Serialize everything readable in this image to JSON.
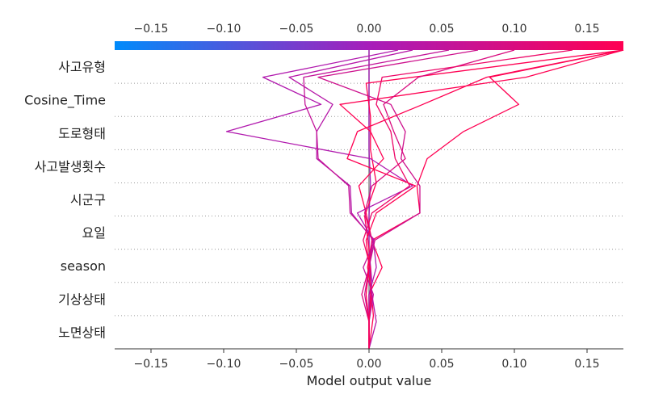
{
  "chart_data": {
    "type": "line",
    "subtype": "decision-plot",
    "xlabel": "Model output value",
    "ylabel": "",
    "xlim": [
      -0.175,
      0.175
    ],
    "base_value": 0.0,
    "x_ticks": [
      -0.15,
      -0.1,
      -0.05,
      0.0,
      0.05,
      0.1,
      0.15
    ],
    "x_tick_labels": [
      "−0.15",
      "−0.10",
      "−0.05",
      "0.00",
      "0.05",
      "0.10",
      "0.15"
    ],
    "features": [
      "사고유형",
      "Cosine_Time",
      "도로형태",
      "사고발생횟수",
      "시군구",
      "요일",
      "season",
      "기상상태",
      "노면상태"
    ],
    "colormap": {
      "low": "#008bfb",
      "mid": "#a71dba",
      "high": "#ff0052"
    },
    "series": [
      {
        "values": [
          0.0,
          0.0,
          0.002,
          0.0,
          0.0,
          0.001,
          0.0,
          0.0,
          0.0,
          0.0
        ]
      },
      {
        "values": [
          0.0,
          0.003,
          0.001,
          0.0,
          -0.003,
          0.005,
          0.001,
          0.001,
          -0.002,
          0.175
        ]
      },
      {
        "values": [
          0.0,
          0.0,
          0.002,
          -0.001,
          0.002,
          0.035,
          0.033,
          0.04,
          0.065,
          0.103,
          0.083,
          0.175
        ]
      },
      {
        "values": [
          0.0,
          0.0,
          0.0,
          0.009,
          0.002,
          -0.002,
          -0.007,
          0.01,
          0.001,
          -0.02,
          0.108,
          0.175
        ]
      },
      {
        "values": [
          0.0,
          0.0,
          0.0,
          0.005,
          0.003,
          -0.008,
          0.03,
          0.001,
          -0.098,
          -0.033,
          -0.073,
          0.02
        ]
      },
      {
        "values": [
          0.0,
          0.005,
          0.002,
          0.0,
          0.003,
          -0.012,
          -0.013,
          -0.036,
          -0.036,
          -0.025,
          -0.055,
          0.03
        ]
      },
      {
        "values": [
          0.0,
          0.0,
          0.003,
          -0.004,
          0.004,
          -0.013,
          -0.014,
          -0.035,
          -0.036,
          -0.044,
          -0.045,
          0.055
        ]
      },
      {
        "values": [
          0.0,
          0.0,
          -0.003,
          0.0,
          0.004,
          0.035,
          0.035,
          0.022,
          0.025,
          0.015,
          -0.035,
          0.075
        ]
      },
      {
        "values": [
          0.0,
          0.0,
          -0.005,
          0.0,
          0.002,
          -0.003,
          0.002,
          0.025,
          0.017,
          0.01,
          0.034,
          0.1
        ]
      },
      {
        "values": [
          0.0,
          0.0,
          0.001,
          0.001,
          -0.004,
          0.002,
          0.028,
          0.018,
          0.015,
          0.005,
          0.009,
          0.14
        ]
      },
      {
        "values": [
          0.0,
          0.0,
          -0.002,
          0.0,
          -0.002,
          0.005,
          0.032,
          -0.015,
          -0.008,
          0.037,
          0.081,
          0.175
        ]
      }
    ]
  }
}
